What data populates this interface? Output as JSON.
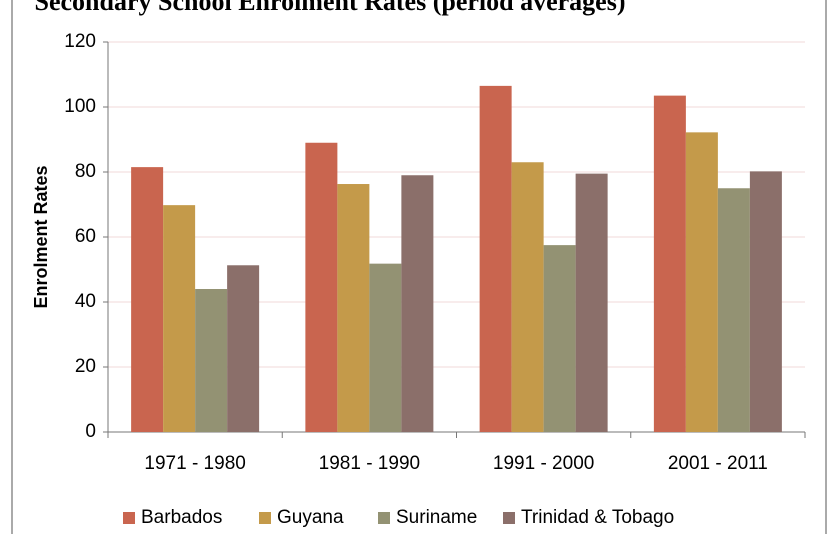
{
  "chart_data": {
    "type": "bar",
    "title": "Secondary School Enrolment Rates (period averages)",
    "y_label": "Enrolment Rates",
    "categories": [
      "1971 - 1980",
      "1981 - 1990",
      "1991 - 2000",
      "2001 - 2011"
    ],
    "series": [
      {
        "name": "Barbados",
        "color": "#c9654f",
        "values": [
          81.5,
          89,
          106.5,
          103.5
        ]
      },
      {
        "name": "Guyana",
        "color": "#c49a4a",
        "values": [
          69.8,
          76.3,
          83,
          92.2
        ]
      },
      {
        "name": "Suriname",
        "color": "#939273",
        "values": [
          44,
          51.8,
          57.5,
          75
        ]
      },
      {
        "name": "Trinidad & Tobago",
        "color": "#8b6f6a",
        "values": [
          51.3,
          79,
          79.5,
          80.2
        ]
      }
    ],
    "ylim": [
      0,
      120
    ],
    "yticks": [
      0,
      20,
      40,
      60,
      80,
      100,
      120
    ],
    "grid": true,
    "legend": "bottom"
  }
}
